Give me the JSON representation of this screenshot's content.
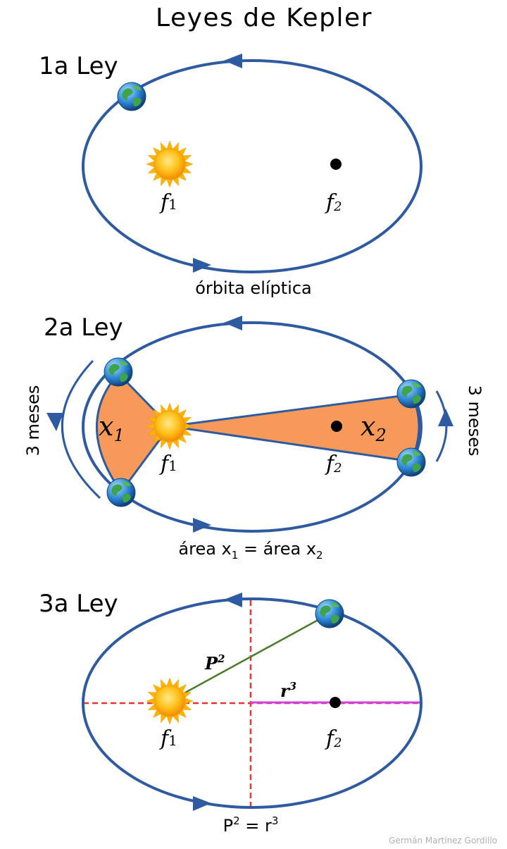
{
  "title": "Leyes de Kepler",
  "law1": {
    "heading": "1a Ley",
    "f1": "f",
    "f1_sub": "1",
    "f2": "f",
    "f2_sub": "2",
    "caption": "órbita elíptica"
  },
  "law2": {
    "heading": "2a Ley",
    "x1": "x",
    "x1_sub": "1",
    "x2": "x",
    "x2_sub": "2",
    "f1": "f",
    "f1_sub": "1",
    "f2": "f",
    "f2_sub": "2",
    "left_duration": "3 meses",
    "right_duration": "3 meses",
    "caption_a": "área x",
    "caption_a_sub": "1",
    "caption_eq": " = área x",
    "caption_b_sub": "2"
  },
  "law3": {
    "heading": "3a Ley",
    "p_label": "P",
    "p_exp": "2",
    "r_label": "r",
    "r_exp": "3",
    "f1": "f",
    "f1_sub": "1",
    "f2": "f",
    "f2_sub": "2",
    "caption_p": "P",
    "caption_p_exp": "2",
    "caption_eq": " = r",
    "caption_r_exp": "3"
  },
  "credit": "Germán Martínez Gordillo",
  "colors": {
    "orbit": "#2d5aa0",
    "area_fill": "#f79a59",
    "radius_line": "#4a7a2a",
    "axis_dashed": "#ee3333",
    "r_line": "#cc44dd"
  }
}
